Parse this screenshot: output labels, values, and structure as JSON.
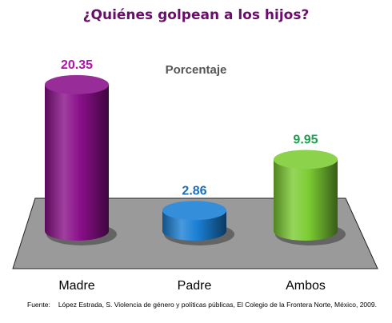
{
  "chart_data": {
    "type": "bar",
    "title": "¿Quiénes golpean a los hijos?",
    "subtitle": "Porcentaje",
    "categories": [
      "Madre",
      "Padre",
      "Ambos"
    ],
    "values": [
      20.35,
      2.86,
      9.95
    ],
    "value_labels": [
      "20.35",
      "2.86",
      "9.95"
    ],
    "ylim": [
      0,
      22
    ],
    "grid": false,
    "legend": "none",
    "colors": {
      "Madre": "#8a0f8a",
      "Padre": "#1a7fd4",
      "Ambos": "#7ccc33"
    },
    "label_colors": {
      "Madre": "#b012b0",
      "Padre": "#1a6fb8",
      "Ambos": "#20a050"
    }
  },
  "source": {
    "label": "Fuente:",
    "text": "López Estrada, S. Violencia de género y políticas públicas, El Colegio de la Frontera Norte, México, 2009."
  }
}
